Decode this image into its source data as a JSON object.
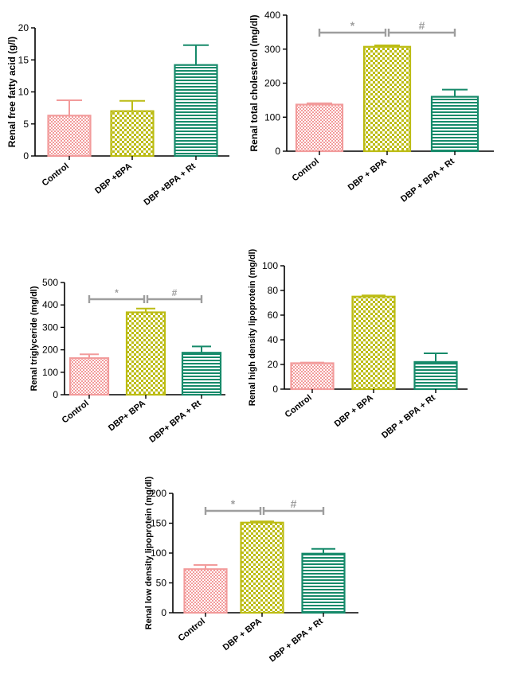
{
  "chart_data": [
    {
      "type": "bar",
      "ylabel": "Renal free fatty acid (g/l)",
      "categories": [
        "Control",
        "DBP +BPA",
        "DBP +BPA + Rt"
      ],
      "values": [
        6.3,
        7.0,
        14.2
      ],
      "errors": [
        2.4,
        1.6,
        3.1
      ],
      "ylim": [
        0,
        20
      ],
      "yticks": [
        "0",
        "5",
        "10",
        "15",
        "20"
      ],
      "significance": []
    },
    {
      "type": "bar",
      "ylabel": "Renal total cholesterol (mg/dl)",
      "categories": [
        "Control",
        "DBP + BPA",
        "DBP + BPA + Rt"
      ],
      "values": [
        137,
        307,
        160
      ],
      "errors": [
        4,
        4,
        21
      ],
      "ylim": [
        0,
        400
      ],
      "yticks": [
        "0",
        "100",
        "200",
        "300",
        "400"
      ],
      "significance": [
        {
          "from": 0,
          "to": 1,
          "label": "*"
        },
        {
          "from": 1,
          "to": 2,
          "label": "#"
        }
      ]
    },
    {
      "type": "bar",
      "ylabel": "Renal triglyceride (mg/dl)",
      "categories": [
        "Control",
        "DBP+ BPA",
        "DBP+ BPA + Rt"
      ],
      "values": [
        163,
        367,
        187
      ],
      "errors": [
        17,
        17,
        28
      ],
      "ylim": [
        0,
        500
      ],
      "yticks": [
        "0",
        "100",
        "200",
        "300",
        "400",
        "500"
      ],
      "significance": [
        {
          "from": 0,
          "to": 1,
          "label": "*"
        },
        {
          "from": 1,
          "to": 2,
          "label": "#"
        }
      ]
    },
    {
      "type": "bar",
      "ylabel": "Renal high density lipoprotein (mg/dl)",
      "categories": [
        "Control",
        "DBP + BPA",
        "DBP + BPA + Rt"
      ],
      "values": [
        21,
        75,
        22
      ],
      "errors": [
        0.5,
        1,
        7
      ],
      "ylim": [
        0,
        100
      ],
      "yticks": [
        "0",
        "20",
        "40",
        "60",
        "80",
        "100"
      ],
      "significance": []
    },
    {
      "type": "bar",
      "ylabel": "Renal low density lipoprotein (mg/dl)",
      "categories": [
        "Control",
        "DBP + BPA",
        "DBP + BPA + Rt"
      ],
      "values": [
        73,
        151,
        99
      ],
      "errors": [
        7,
        2,
        8
      ],
      "ylim": [
        0,
        200
      ],
      "yticks": [
        "0",
        "50",
        "100",
        "150",
        "200"
      ],
      "significance": [
        {
          "from": 0,
          "to": 1,
          "label": "*"
        },
        {
          "from": 1,
          "to": 2,
          "label": "#"
        }
      ]
    }
  ],
  "colors": {
    "control": "#f29b9b",
    "dbp_bpa": "#bcbc14",
    "dbp_bpa_rt": "#168a6a",
    "significance": "#9e9e9e"
  }
}
